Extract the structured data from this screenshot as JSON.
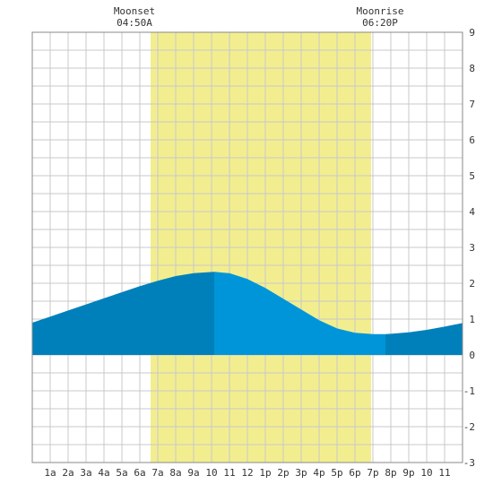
{
  "chart_data": {
    "type": "area",
    "title": "",
    "xlabel": "",
    "ylabel": "",
    "x_ticks": [
      "1a",
      "2a",
      "3a",
      "4a",
      "5a",
      "6a",
      "7a",
      "8a",
      "9a",
      "10",
      "11",
      "12",
      "1p",
      "2p",
      "3p",
      "4p",
      "5p",
      "6p",
      "7p",
      "8p",
      "9p",
      "10",
      "11"
    ],
    "x_range_hours": [
      0,
      24
    ],
    "y_ticks": [
      "9",
      "8",
      "7",
      "6",
      "5",
      "4",
      "3",
      "2",
      "1",
      "0",
      "-1",
      "-2",
      "-3"
    ],
    "ylim": [
      -3,
      9
    ],
    "grid": true,
    "series": [
      {
        "x_hours": [
          0,
          1,
          2,
          3,
          4,
          5,
          6,
          7,
          8,
          9,
          10.15,
          11,
          12,
          13,
          14,
          15,
          16,
          17,
          18,
          19,
          19.7,
          20,
          21,
          22,
          23,
          24
        ],
        "values": [
          0.9,
          1.07,
          1.24,
          1.41,
          1.58,
          1.75,
          1.92,
          2.07,
          2.2,
          2.28,
          2.32,
          2.28,
          2.12,
          1.87,
          1.57,
          1.27,
          0.97,
          0.74,
          0.62,
          0.58,
          0.58,
          0.59,
          0.63,
          0.7,
          0.79,
          0.89
        ],
        "colors": {
          "day_fill": "#0095d9",
          "night_fill": "#0080bb"
        }
      }
    ],
    "daylight": {
      "x_range_hours": [
        6.6,
        18.9
      ],
      "color": "#f2ee90"
    },
    "night_to_day_split_hours": 10.15,
    "day_to_night_split_hours": 19.7,
    "annotations": {
      "moonset": {
        "label": "Moonset",
        "time": "04:50A"
      },
      "moonrise": {
        "label": "Moonrise",
        "time": "06:20P"
      }
    },
    "colors": {
      "grid": "#c8c8c8",
      "frame": "#888888",
      "text": "#333333"
    }
  }
}
